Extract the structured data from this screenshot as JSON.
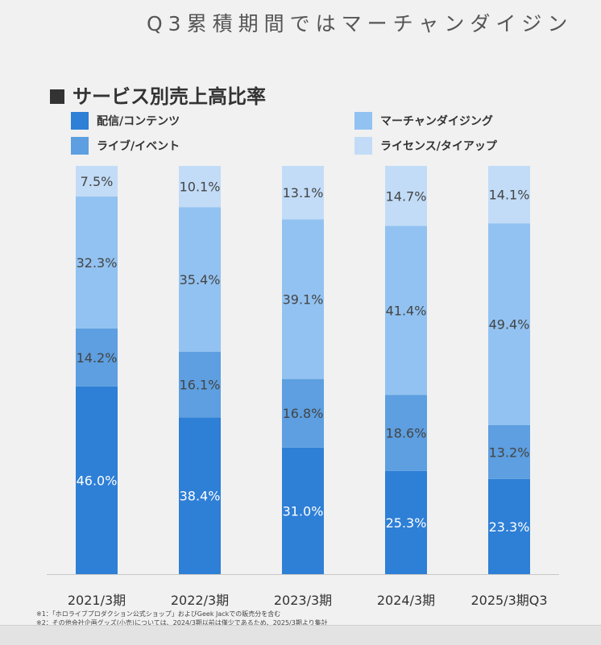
{
  "page_title": "Q3累積期間ではマーチャンダイジン",
  "section_title": "サービス別売上高比率",
  "notes": [
    "※1：「ホロライブプロダクション公式ショップ」およびGeek Jackでの販売分を含む",
    "※2：その他会社企画グッズ(小売)については、2024/3期以前は僅少であるため、2025/3期より集計"
  ],
  "colors": {
    "distribution": "#2e7fd6",
    "live": "#5d9fe0",
    "merch": "#92c2f1",
    "license": "#c2dcf7"
  },
  "chart_data": {
    "type": "bar",
    "stacked": true,
    "unit": "%",
    "categories": [
      "2021/3期",
      "2022/3期",
      "2023/3期",
      "2024/3期",
      "2025/3期Q3"
    ],
    "series": [
      {
        "name": "配信/コンテンツ",
        "key": "distribution",
        "values": [
          46.0,
          38.4,
          31.0,
          25.3,
          23.3
        ]
      },
      {
        "name": "ライブ/イベント",
        "key": "live",
        "values": [
          14.2,
          16.1,
          16.8,
          18.6,
          13.2
        ]
      },
      {
        "name": "マーチャンダイジング",
        "key": "merch",
        "values": [
          32.3,
          35.4,
          39.1,
          41.4,
          49.4
        ]
      },
      {
        "name": "ライセンス/タイアップ",
        "key": "license",
        "values": [
          7.5,
          10.1,
          13.1,
          14.7,
          14.1
        ]
      }
    ],
    "ylim": [
      0,
      100
    ],
    "legend": "top",
    "grid": false
  }
}
